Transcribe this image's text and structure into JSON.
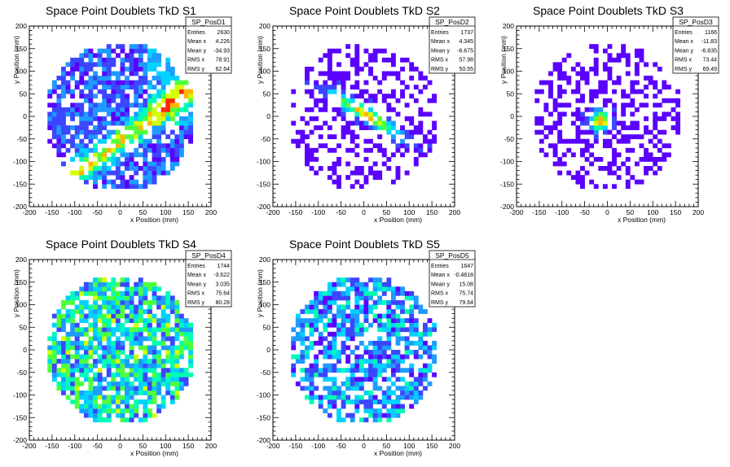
{
  "chart_data": [
    {
      "type": "heatmap",
      "title": "Space Point Doublets TkD S1",
      "xlabel": "x Position (mm)",
      "ylabel": "y Position (mm)",
      "xlim": [
        -200,
        200
      ],
      "ylim": [
        -200,
        200
      ],
      "xticks": [
        "-200",
        "-150",
        "-100",
        "-50",
        "0",
        "50",
        "100",
        "150",
        "200"
      ],
      "yticks": [
        "-200",
        "-150",
        "-100",
        "-50",
        "0",
        "50",
        "100",
        "150",
        "200"
      ],
      "pattern": "band",
      "stats": {
        "name": "SP_PosD1",
        "rows": [
          {
            "label": "Entries",
            "value": "2630"
          },
          {
            "label": "Mean x",
            "value": "4.226"
          },
          {
            "label": "Mean y",
            "value": "-34.93"
          },
          {
            "label": "RMS x",
            "value": "78.91"
          },
          {
            "label": "RMS y",
            "value": "62.64"
          }
        ]
      }
    },
    {
      "type": "heatmap",
      "title": "Space Point Doublets TkD S2",
      "xlabel": "x Position (mm)",
      "ylabel": "y Position (mm)",
      "xlim": [
        -200,
        200
      ],
      "ylim": [
        -200,
        200
      ],
      "xticks": [
        "-200",
        "-150",
        "-100",
        "-50",
        "0",
        "50",
        "100",
        "150",
        "200"
      ],
      "yticks": [
        "-200",
        "-150",
        "-100",
        "-50",
        "0",
        "50",
        "100",
        "150",
        "200"
      ],
      "pattern": "band-narrow",
      "stats": {
        "name": "SP_PosD2",
        "rows": [
          {
            "label": "Entries",
            "value": "1737"
          },
          {
            "label": "Mean x",
            "value": "4.345"
          },
          {
            "label": "Mean y",
            "value": "-6.675"
          },
          {
            "label": "RMS x",
            "value": "57.98"
          },
          {
            "label": "RMS y",
            "value": "50.55"
          }
        ]
      }
    },
    {
      "type": "heatmap",
      "title": "Space Point Doublets TkD S3",
      "xlabel": "x Position (mm)",
      "ylabel": "y Position (mm)",
      "xlim": [
        -200,
        200
      ],
      "ylim": [
        -200,
        200
      ],
      "xticks": [
        "-200",
        "-150",
        "-100",
        "-50",
        "0",
        "50",
        "100",
        "150",
        "200"
      ],
      "yticks": [
        "-200",
        "-150",
        "-100",
        "-50",
        "0",
        "50",
        "100",
        "150",
        "200"
      ],
      "pattern": "spot",
      "stats": {
        "name": "SP_PosD3",
        "rows": [
          {
            "label": "Entries",
            "value": "1166"
          },
          {
            "label": "Mean x",
            "value": "-11.83"
          },
          {
            "label": "Mean y",
            "value": "-6.835"
          },
          {
            "label": "RMS x",
            "value": "73.44"
          },
          {
            "label": "RMS y",
            "value": "69.49"
          }
        ]
      }
    },
    {
      "type": "heatmap",
      "title": "Space Point Doublets TkD S4",
      "xlabel": "x Position (mm)",
      "ylabel": "y Position (mm)",
      "xlim": [
        -200,
        200
      ],
      "ylim": [
        -200,
        200
      ],
      "xticks": [
        "-200",
        "-150",
        "-100",
        "-50",
        "0",
        "50",
        "100",
        "150",
        "200"
      ],
      "yticks": [
        "-200",
        "-150",
        "-100",
        "-50",
        "0",
        "50",
        "100",
        "150",
        "200"
      ],
      "pattern": "uniform",
      "stats": {
        "name": "SP_PosD4",
        "rows": [
          {
            "label": "Entries",
            "value": "1744"
          },
          {
            "label": "Mean x",
            "value": "-3.622"
          },
          {
            "label": "Mean y",
            "value": "3.035"
          },
          {
            "label": "RMS x",
            "value": "75.64"
          },
          {
            "label": "RMS y",
            "value": "80.28"
          }
        ]
      }
    },
    {
      "type": "heatmap",
      "title": "Space Point Doublets TkD S5",
      "xlabel": "x Position (mm)",
      "ylabel": "y Position (mm)",
      "xlim": [
        -200,
        200
      ],
      "ylim": [
        -200,
        200
      ],
      "xticks": [
        "-200",
        "-150",
        "-100",
        "-50",
        "0",
        "50",
        "100",
        "150",
        "200"
      ],
      "yticks": [
        "-200",
        "-150",
        "-100",
        "-50",
        "0",
        "50",
        "100",
        "150",
        "200"
      ],
      "pattern": "sparse",
      "stats": {
        "name": "SP_PosD5",
        "rows": [
          {
            "label": "Entries",
            "value": "1647"
          },
          {
            "label": "Mean x",
            "value": "-0.4818"
          },
          {
            "label": "Mean y",
            "value": "15.08"
          },
          {
            "label": "RMS x",
            "value": "75.74"
          },
          {
            "label": "RMS y",
            "value": "79.64"
          }
        ]
      }
    }
  ],
  "palette": [
    "#5a00ff",
    "#3c46ff",
    "#1e9bff",
    "#00d2ff",
    "#00ffb4",
    "#50ff3c",
    "#d2ff00",
    "#ffb400",
    "#ff2800"
  ]
}
